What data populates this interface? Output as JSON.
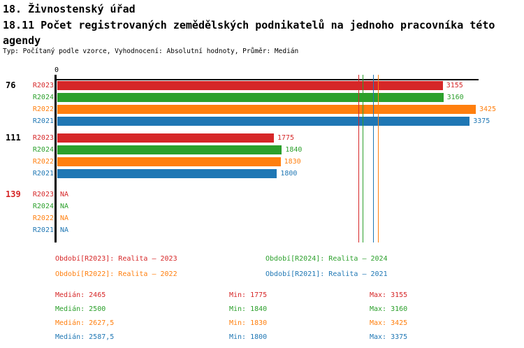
{
  "header": {
    "title": "18. Živnostenský úřad",
    "subtitle": "18.11 Počet  registrovaných zemědělských podnikatelů na jednoho pracovníka  této agendy",
    "type_line": "Typ: Počítaný podle vzorce, Vyhodnocení: Absolutní hodnoty, Průměr: Medián"
  },
  "chart_data": {
    "type": "bar",
    "orientation": "horizontal",
    "title": "18.11 Počet registrovaných zemědělských podnikatelů na jednoho pracovníka této agendy",
    "xlabel": "",
    "ylabel": "",
    "x_axis": {
      "min": 0,
      "max": 3450,
      "tick_labels": [
        "0"
      ],
      "grid": false
    },
    "na_text": "NA",
    "series": [
      {
        "name": "R2023",
        "color": "#d62728",
        "median_value": 2465,
        "median_display": "2465",
        "min_display": "1775",
        "max_display": "3155"
      },
      {
        "name": "R2024",
        "color": "#2ca02c",
        "median_value": 2500,
        "median_display": "2500",
        "min_display": "1840",
        "max_display": "3160"
      },
      {
        "name": "R2022",
        "color": "#ff7f0e",
        "median_value": 2627.5,
        "median_display": "2627,5",
        "min_display": "1830",
        "max_display": "3425"
      },
      {
        "name": "R2021",
        "color": "#1f77b4",
        "median_value": 2587.5,
        "median_display": "2587,5",
        "min_display": "1800",
        "max_display": "3375"
      }
    ],
    "groups": [
      {
        "label": "76",
        "label_color": "#000000",
        "values": [
          3155,
          3160,
          3425,
          3375
        ]
      },
      {
        "label": "111",
        "label_color": "#000000",
        "values": [
          1775,
          1840,
          1830,
          1800
        ]
      },
      {
        "label": "139",
        "label_color": "#d62728",
        "values": [
          null,
          null,
          null,
          null
        ]
      }
    ],
    "median_lines": [
      2465,
      2500,
      2627.5,
      2587.5
    ],
    "legend_position": "bottom"
  },
  "legend": {
    "items": [
      {
        "label": "Období[R2023]: Realita – 2023",
        "color": "#d62728"
      },
      {
        "label": "Období[R2024]: Realita – 2024",
        "color": "#2ca02c"
      },
      {
        "label": "Období[R2022]: Realita – 2022",
        "color": "#ff7f0e"
      },
      {
        "label": "Období[R2021]: Realita – 2021",
        "color": "#1f77b4"
      }
    ]
  },
  "stats": {
    "median_label": "Medián",
    "min_label": "Min",
    "max_label": "Max"
  }
}
